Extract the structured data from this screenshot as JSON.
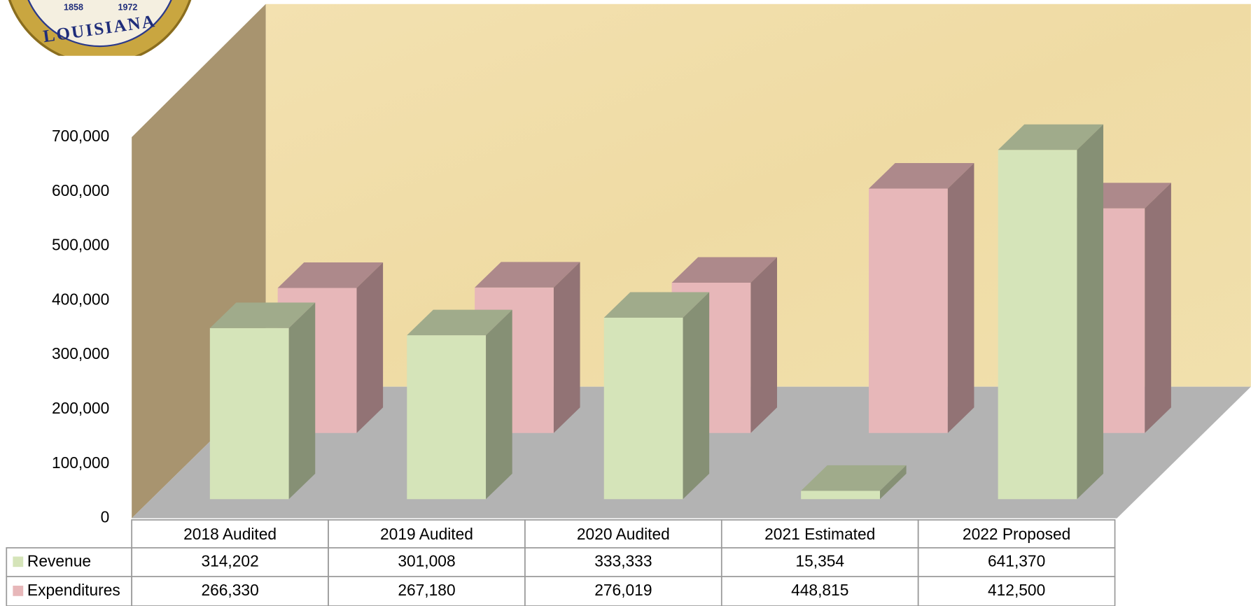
{
  "logo": {
    "texts": [
      "1858",
      "1972",
      "LOUISIANA"
    ]
  },
  "chart_data": {
    "type": "bar3d",
    "categories": [
      "2018 Audited",
      "2019 Audited",
      "2020 Audited",
      "2021 Estimated",
      "2022 Proposed"
    ],
    "series": [
      {
        "name": "Revenue",
        "color": "#d5e4b9",
        "values": [
          314202,
          301008,
          333333,
          15354,
          641370
        ],
        "value_labels": [
          "314,202",
          "301,008",
          "333,333",
          "15,354",
          "641,370"
        ]
      },
      {
        "name": "Expenditures",
        "color": "#e7b7b9",
        "values": [
          266330,
          267180,
          276019,
          448815,
          412500
        ],
        "value_labels": [
          "266,330",
          "267,180",
          "276,019",
          "448,815",
          "412,500"
        ]
      }
    ],
    "ylim": [
      0,
      700000
    ],
    "yticks": [
      0,
      {
        "value": 100000,
        "label": "100,000"
      },
      {
        "value": 200000,
        "label": "200,000"
      },
      {
        "value": 300000,
        "label": "300,000"
      },
      {
        "value": 400000,
        "label": "400,000"
      },
      {
        "value": 500000,
        "label": "500,000"
      },
      {
        "value": 600000,
        "label": "600,000"
      },
      {
        "value": 700000,
        "label": "700,000"
      }
    ]
  }
}
